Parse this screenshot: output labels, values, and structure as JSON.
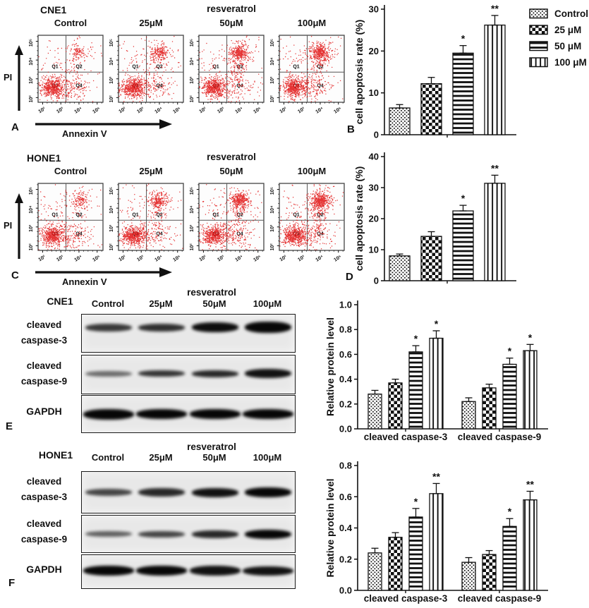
{
  "legend": {
    "items": [
      {
        "label": "Control",
        "pattern": "fine-dots"
      },
      {
        "label": "25 μM",
        "pattern": "checkerboard"
      },
      {
        "label": "50 μM",
        "pattern": "horizontal-lines"
      },
      {
        "label": "100 μM",
        "pattern": "vertical-lines"
      }
    ]
  },
  "flow_panels": [
    {
      "letter": "A",
      "cell_line": "CNE1",
      "treatment_label": "resveratrol",
      "x_axis_label": "Annexin V",
      "y_axis_label": "PI",
      "conditions": [
        "Control",
        "25μM",
        "50μM",
        "100μM"
      ],
      "quadrant_labels": [
        "Q1",
        "Q2",
        "Q3",
        "Q4"
      ],
      "tick_labels": [
        "10²",
        "10³",
        "10⁴",
        "10⁵"
      ],
      "plots": [
        {
          "condition": "Control",
          "q2_n": 70,
          "bridge_n": 25
        },
        {
          "condition": "25μM",
          "q2_n": 130,
          "bridge_n": 40
        },
        {
          "condition": "50μM",
          "q2_n": 205,
          "bridge_n": 95
        },
        {
          "condition": "100μM",
          "q2_n": 245,
          "bridge_n": 70
        }
      ]
    },
    {
      "letter": "C",
      "cell_line": "HONE1",
      "treatment_label": "resveratrol",
      "x_axis_label": "Annexin V",
      "y_axis_label": "PI",
      "conditions": [
        "Control",
        "25μM",
        "50μM",
        "100μM"
      ],
      "quadrant_labels": [
        "Q1",
        "Q2",
        "Q3",
        "Q4"
      ],
      "tick_labels": [
        "10²",
        "10³",
        "10⁴",
        "10⁵"
      ],
      "plots": [
        {
          "condition": "Control",
          "q2_n": 80,
          "bridge_n": 30
        },
        {
          "condition": "25μM",
          "q2_n": 150,
          "bridge_n": 45
        },
        {
          "condition": "50μM",
          "q2_n": 215,
          "bridge_n": 85
        },
        {
          "condition": "100μM",
          "q2_n": 285,
          "bridge_n": 95
        }
      ]
    }
  ],
  "chart_data": [
    {
      "id": "B",
      "panel_letter": "B",
      "type": "bar",
      "title": "",
      "xlabel": "",
      "ylabel": "cell apoptosis rate (%)",
      "ylim": [
        0,
        30
      ],
      "yticks": [
        0,
        10,
        20,
        30
      ],
      "ytick_labels": [
        "0",
        "10",
        "20",
        "30"
      ],
      "categories": [
        "Control",
        "25 μM",
        "50 μM",
        "100 μM"
      ],
      "values": [
        6.4,
        12.2,
        19.5,
        26.2
      ],
      "errors": [
        0.8,
        1.5,
        1.8,
        2.3
      ],
      "significance": [
        "",
        "",
        "*",
        "**"
      ]
    },
    {
      "id": "D",
      "panel_letter": "D",
      "type": "bar",
      "title": "",
      "xlabel": "",
      "ylabel": "cell apoptosis rate (%)",
      "ylim": [
        0,
        40
      ],
      "yticks": [
        0,
        10,
        20,
        30,
        40
      ],
      "ytick_labels": [
        "0",
        "10",
        "20",
        "30",
        "40"
      ],
      "categories": [
        "Control",
        "25 μM",
        "50 μM",
        "100 μM"
      ],
      "values": [
        8.0,
        14.3,
        22.5,
        31.4
      ],
      "errors": [
        0.6,
        1.5,
        1.8,
        2.6
      ],
      "significance": [
        "",
        "",
        "*",
        "**"
      ]
    },
    {
      "id": "E",
      "type": "bar",
      "title": "",
      "xlabel": "",
      "ylabel": "Relative protein level",
      "ylim": [
        0,
        1.0
      ],
      "yticks": [
        0,
        0.2,
        0.4,
        0.6,
        0.8,
        1.0
      ],
      "ytick_labels": [
        "0.0",
        "0.2",
        "0.4",
        "0.6",
        "0.8",
        "1.0"
      ],
      "groups": [
        "cleaved caspase-3",
        "cleaved caspase-9"
      ],
      "series": [
        {
          "name": "Control",
          "values": [
            0.28,
            0.22
          ],
          "errors": [
            0.03,
            0.03
          ],
          "significance": [
            "",
            ""
          ]
        },
        {
          "name": "25 μM",
          "values": [
            0.37,
            0.33
          ],
          "errors": [
            0.03,
            0.03
          ],
          "significance": [
            "",
            ""
          ]
        },
        {
          "name": "50 μM",
          "values": [
            0.62,
            0.52
          ],
          "errors": [
            0.05,
            0.05
          ],
          "significance": [
            "*",
            "*"
          ]
        },
        {
          "name": "100 μM",
          "values": [
            0.73,
            0.63
          ],
          "errors": [
            0.06,
            0.05
          ],
          "significance": [
            "*",
            "*"
          ]
        }
      ]
    },
    {
      "id": "F",
      "type": "bar",
      "title": "",
      "xlabel": "",
      "ylabel": "Relative protein level",
      "ylim": [
        0,
        0.8
      ],
      "yticks": [
        0,
        0.2,
        0.4,
        0.6,
        0.8
      ],
      "ytick_labels": [
        "0.0",
        "0.2",
        "0.4",
        "0.6",
        "0.8"
      ],
      "groups": [
        "cleaved caspase-3",
        "cleaved caspase-9"
      ],
      "series": [
        {
          "name": "Control",
          "values": [
            0.24,
            0.18
          ],
          "errors": [
            0.03,
            0.03
          ],
          "significance": [
            "",
            ""
          ]
        },
        {
          "name": "25 μM",
          "values": [
            0.34,
            0.23
          ],
          "errors": [
            0.03,
            0.025
          ],
          "significance": [
            "",
            ""
          ]
        },
        {
          "name": "50 μM",
          "values": [
            0.47,
            0.41
          ],
          "errors": [
            0.055,
            0.05
          ],
          "significance": [
            "*",
            "*"
          ]
        },
        {
          "name": "100 μM",
          "values": [
            0.62,
            0.58
          ],
          "errors": [
            0.065,
            0.055
          ],
          "significance": [
            "**",
            "**"
          ]
        }
      ]
    }
  ],
  "blot_panels": [
    {
      "letter": "E",
      "cell_line": "CNE1",
      "treatment_label": "resveratrol",
      "conditions": [
        "Control",
        "25μM",
        "50μM",
        "100μM"
      ],
      "rows": [
        {
          "label_lines": [
            "cleaved",
            "caspase-3"
          ],
          "band_heights": [
            11,
            11,
            14,
            16
          ],
          "band_intensities": [
            0.78,
            0.82,
            0.97,
            1.0
          ]
        },
        {
          "label_lines": [
            "cleaved",
            "caspase-9"
          ],
          "band_heights": [
            8,
            9,
            10,
            13
          ],
          "band_intensities": [
            0.55,
            0.8,
            0.85,
            0.95
          ]
        },
        {
          "label_lines": [
            "GAPDH"
          ],
          "band_heights": [
            15,
            14,
            14,
            14
          ],
          "band_intensities": [
            1.0,
            1.0,
            1.0,
            1.0
          ]
        }
      ]
    },
    {
      "letter": "F",
      "cell_line": "HONE1",
      "treatment_label": "resveratrol",
      "conditions": [
        "Control",
        "25μM",
        "50μM",
        "100μM"
      ],
      "rows": [
        {
          "label_lines": [
            "cleaved",
            "caspase-3"
          ],
          "band_heights": [
            10,
            12,
            13,
            14
          ],
          "band_intensities": [
            0.72,
            0.85,
            0.95,
            1.0
          ]
        },
        {
          "label_lines": [
            "cleaved",
            "caspase-9"
          ],
          "band_heights": [
            8,
            9,
            11,
            13
          ],
          "band_intensities": [
            0.6,
            0.72,
            0.85,
            1.0
          ]
        },
        {
          "label_lines": [
            "GAPDH"
          ],
          "band_heights": [
            14,
            14,
            14,
            13
          ],
          "band_intensities": [
            1.0,
            1.0,
            0.95,
            0.95
          ]
        }
      ]
    }
  ]
}
